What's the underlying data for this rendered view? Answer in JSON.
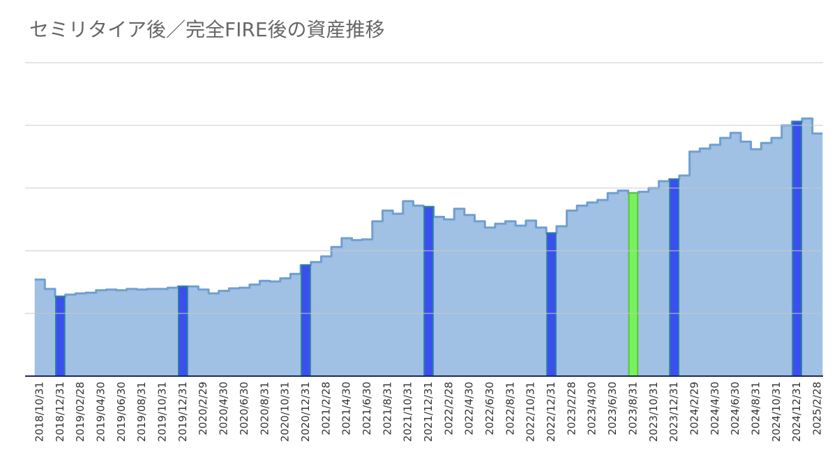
{
  "chart_data": {
    "type": "step-area",
    "title": "セミリタイア後／完全FIRE後の資産推移",
    "categories": [
      "2018/10/31",
      null,
      "2018/12/31",
      null,
      "2019/02/28",
      null,
      "2019/04/30",
      null,
      "2019/06/30",
      null,
      "2019/08/31",
      null,
      "2019/10/31",
      null,
      "2019/12/31",
      null,
      "2020/2/29",
      null,
      "2020/4/30",
      null,
      "2020/6/30",
      null,
      "2020/8/31",
      null,
      "2020/10/31",
      null,
      "2020/12/31",
      null,
      "2021/2/28",
      null,
      "2021/4/30",
      null,
      "2021/6/30",
      null,
      "2021/8/31",
      null,
      "2021/10/31",
      null,
      "2021/12/31",
      null,
      "2022/2/28",
      null,
      "2022/4/30",
      null,
      "2022/6/30",
      null,
      "2022/8/31",
      null,
      "2022/10/31",
      null,
      "2022/12/31",
      null,
      "2023/2/28",
      null,
      "2023/4/30",
      null,
      "2023/6/30",
      null,
      "2023/8/31",
      null,
      "2023/10/31",
      null,
      "2023/12/31",
      null,
      "2024/2/29",
      null,
      "2024/4/30",
      null,
      "2024/6/30",
      null,
      "2024/8/31",
      null,
      "2024/10/31",
      null,
      "2024/12/31",
      null,
      "2025/2/28"
    ],
    "series": [
      {
        "type": "area",
        "color": "#a0c0e4",
        "line_color": "#6e9fd2",
        "values": [
          1.54,
          1.39,
          1.27,
          1.3,
          1.32,
          1.33,
          1.37,
          1.38,
          1.37,
          1.39,
          1.38,
          1.39,
          1.39,
          1.41,
          1.43,
          1.43,
          1.38,
          1.32,
          1.36,
          1.4,
          1.41,
          1.46,
          1.52,
          1.51,
          1.56,
          1.63,
          1.77,
          1.82,
          1.91,
          2.06,
          2.2,
          2.17,
          2.18,
          2.47,
          2.64,
          2.59,
          2.79,
          2.72,
          2.7,
          2.54,
          2.5,
          2.67,
          2.57,
          2.47,
          2.37,
          2.43,
          2.47,
          2.4,
          2.48,
          2.37,
          2.28,
          2.39,
          2.64,
          2.72,
          2.77,
          2.81,
          2.92,
          2.96,
          2.92,
          2.94,
          3.0,
          3.11,
          3.14,
          3.2,
          3.58,
          3.63,
          3.69,
          3.8,
          3.88,
          3.74,
          3.62,
          3.72,
          3.8,
          4.0,
          4.06,
          4.11,
          3.87
        ]
      },
      {
        "type": "bar",
        "color": "#3a4ff0",
        "line_color": "#2a7f9f",
        "values": [
          null,
          null,
          1.27,
          null,
          null,
          null,
          null,
          null,
          null,
          null,
          null,
          null,
          null,
          null,
          1.43,
          null,
          null,
          null,
          null,
          null,
          null,
          null,
          null,
          null,
          null,
          null,
          1.77,
          null,
          null,
          null,
          null,
          null,
          null,
          null,
          null,
          null,
          null,
          null,
          2.7,
          null,
          null,
          null,
          null,
          null,
          null,
          null,
          null,
          null,
          null,
          null,
          2.28,
          null,
          null,
          null,
          null,
          null,
          null,
          null,
          null,
          null,
          null,
          null,
          3.14,
          null,
          null,
          null,
          null,
          null,
          null,
          null,
          null,
          null,
          null,
          null,
          4.06,
          null,
          null
        ]
      },
      {
        "type": "bar",
        "color": "#78f25a",
        "line_color": "#5cc043",
        "values": [
          null,
          null,
          null,
          null,
          null,
          null,
          null,
          null,
          null,
          null,
          null,
          null,
          null,
          null,
          null,
          null,
          null,
          null,
          null,
          null,
          null,
          null,
          null,
          null,
          null,
          null,
          null,
          null,
          null,
          null,
          null,
          null,
          null,
          null,
          null,
          null,
          null,
          null,
          null,
          null,
          null,
          null,
          null,
          null,
          null,
          null,
          null,
          null,
          null,
          null,
          null,
          null,
          null,
          null,
          null,
          null,
          null,
          null,
          2.92,
          null,
          null,
          null,
          null,
          null,
          null,
          null,
          null,
          null,
          null,
          null,
          null,
          null,
          null,
          null,
          null,
          null,
          null
        ]
      }
    ],
    "ylim": [
      0,
      5
    ],
    "yticks": [
      0,
      1,
      2,
      3,
      4,
      5
    ],
    "grid": true
  }
}
